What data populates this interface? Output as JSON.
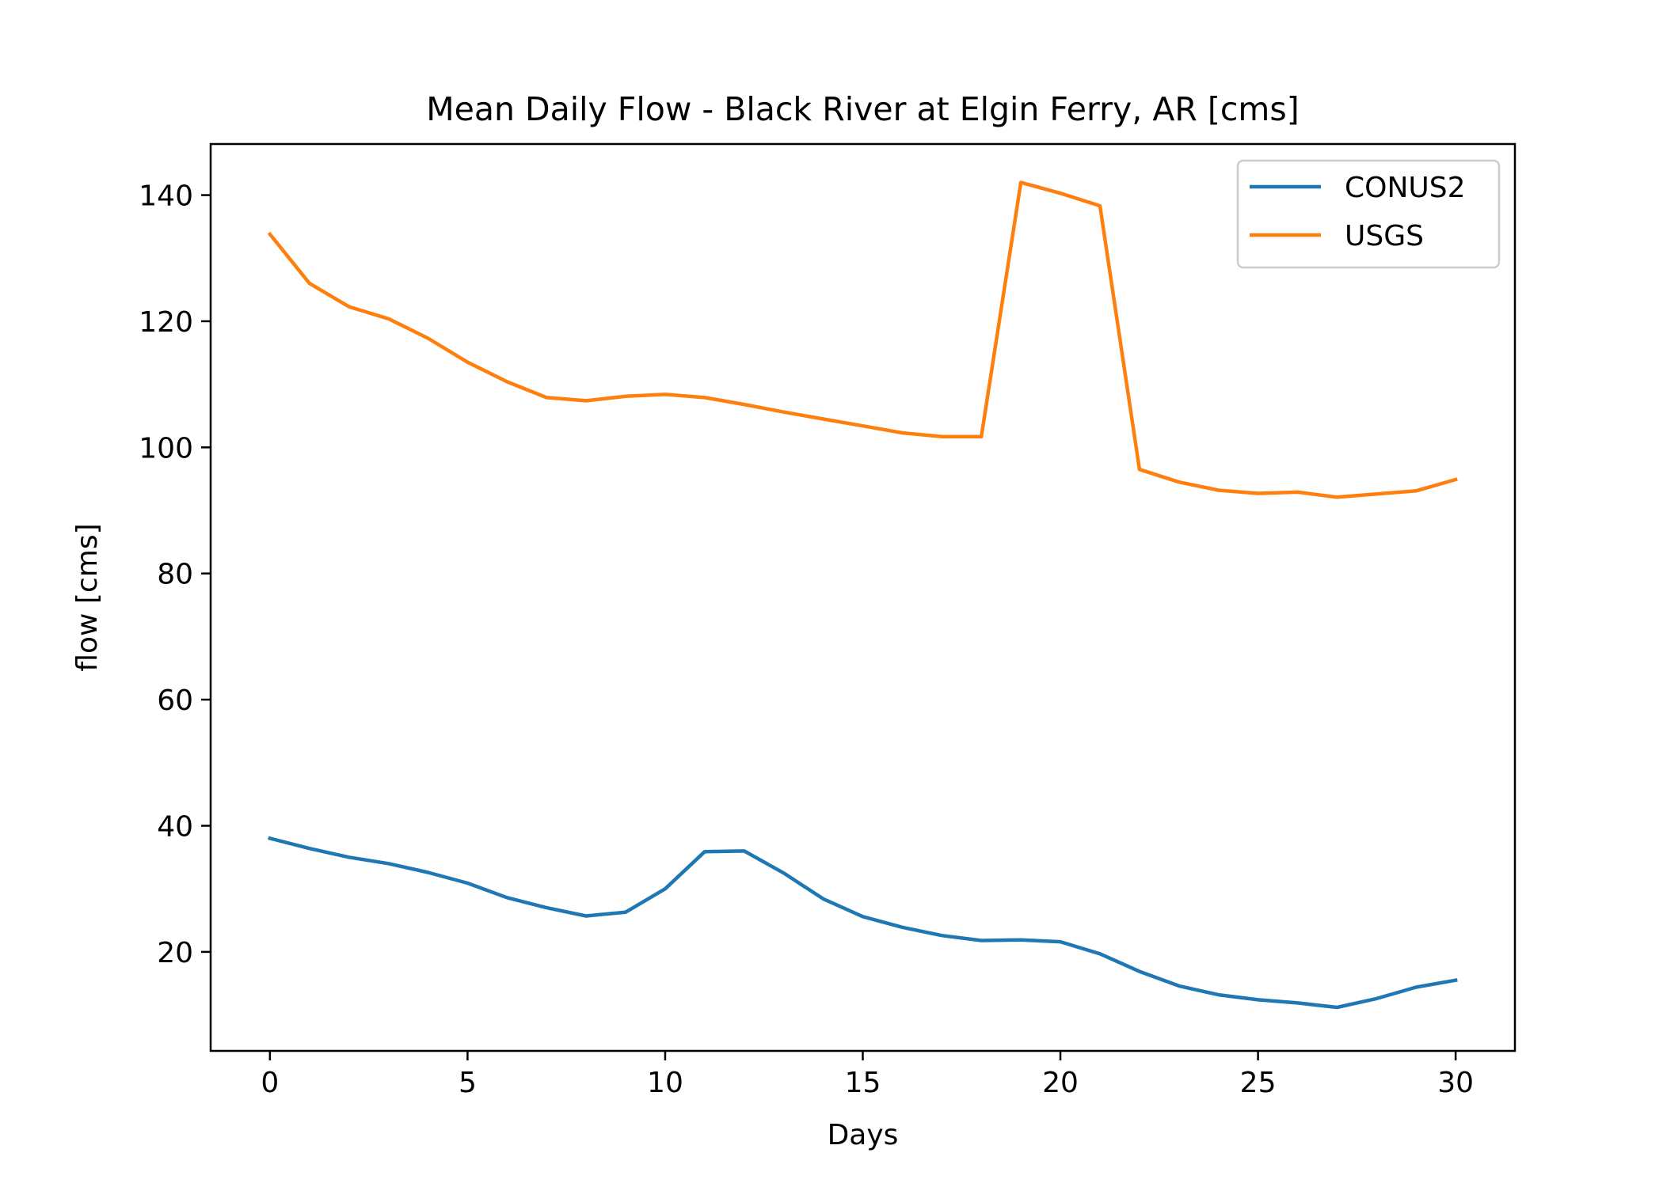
{
  "chart_data": {
    "type": "line",
    "title": "Mean Daily Flow - Black River at Elgin Ferry, AR [cms]",
    "xlabel": "Days",
    "ylabel": "flow [cms]",
    "xlim": [
      -1.5,
      31.5
    ],
    "ylim": [
      4.3,
      148.1
    ],
    "xticks": [
      0,
      5,
      10,
      15,
      20,
      25,
      30
    ],
    "yticks": [
      20,
      40,
      60,
      80,
      100,
      120,
      140
    ],
    "grid": false,
    "legend_position": "top-right",
    "x": [
      0,
      1,
      2,
      3,
      4,
      5,
      6,
      7,
      8,
      9,
      10,
      11,
      12,
      13,
      14,
      15,
      16,
      17,
      18,
      19,
      20,
      21,
      22,
      23,
      24,
      25,
      26,
      27,
      28,
      29,
      30
    ],
    "series": [
      {
        "name": "CONUS2",
        "color": "#1f77b4",
        "values": [
          38.0,
          36.4,
          35.0,
          34.0,
          32.6,
          30.9,
          28.6,
          27.0,
          25.7,
          26.3,
          30.0,
          35.9,
          36.0,
          32.5,
          28.4,
          25.6,
          23.9,
          22.6,
          21.8,
          21.9,
          21.6,
          19.7,
          16.9,
          14.6,
          13.2,
          12.4,
          11.9,
          11.2,
          12.6,
          14.4,
          15.5
        ]
      },
      {
        "name": "USGS",
        "color": "#ff7f0e",
        "values": [
          133.8,
          126.0,
          122.3,
          120.4,
          117.3,
          113.5,
          110.4,
          107.9,
          107.4,
          108.1,
          108.4,
          107.9,
          106.8,
          105.6,
          104.5,
          103.4,
          102.3,
          101.7,
          101.7,
          142.0,
          140.3,
          138.3,
          96.5,
          94.5,
          93.2,
          92.7,
          92.9,
          92.1,
          92.6,
          93.1,
          94.9
        ]
      }
    ]
  }
}
